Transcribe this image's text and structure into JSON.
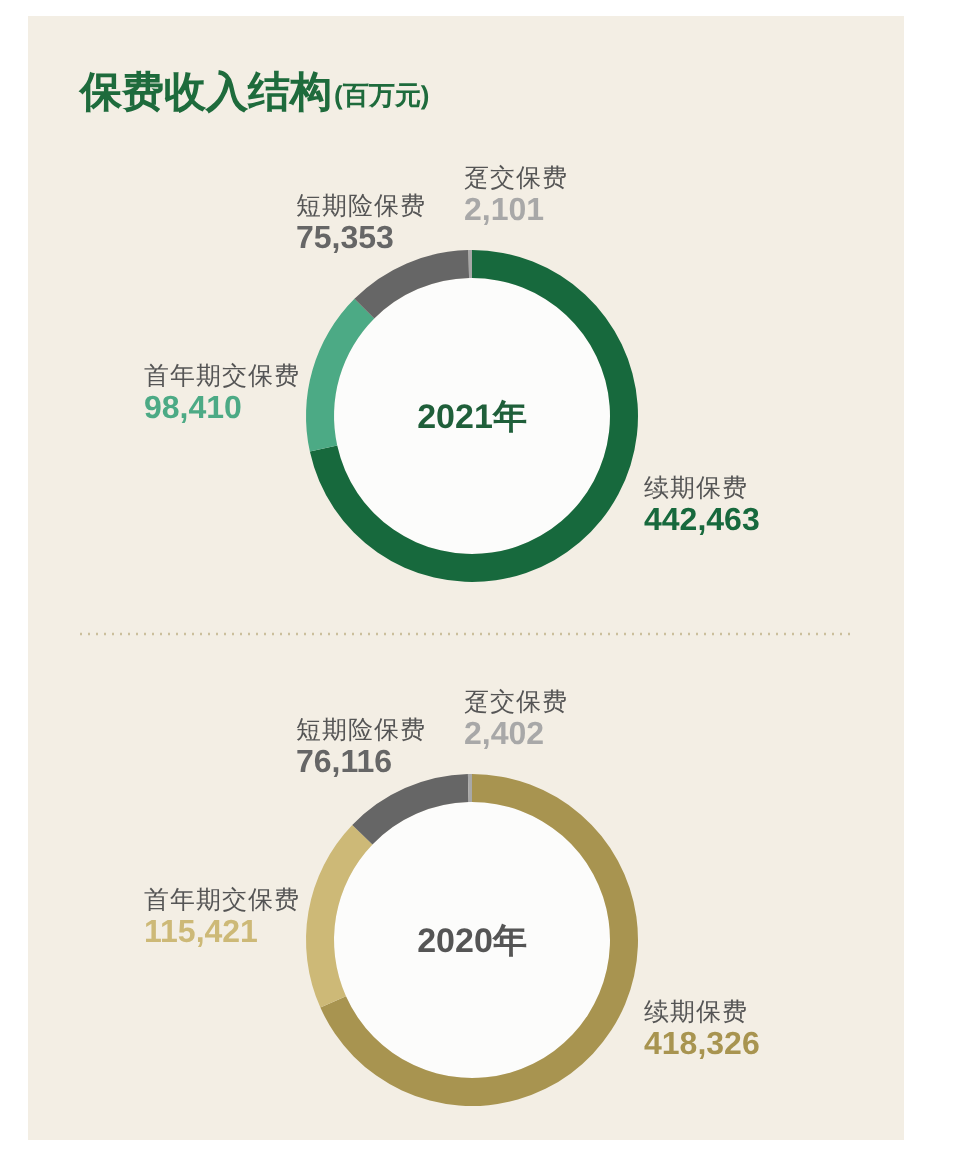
{
  "chart_data": [
    {
      "type": "donut",
      "title": "保费收入结构",
      "subtitle": "(百万元)",
      "annotations": [
        "2021年"
      ],
      "categories": [
        "续期保费",
        "首年期交保费",
        "短期险保费",
        "趸交保费"
      ],
      "values": [
        442463,
        98410,
        75353,
        2101
      ],
      "value_labels": [
        "442,463",
        "98,410",
        "75,353",
        "2,101"
      ],
      "colors": [
        "#17693d",
        "#4caa85",
        "#666666",
        "#a8a8a8"
      ]
    },
    {
      "type": "donut",
      "annotations": [
        "2020年"
      ],
      "categories": [
        "续期保费",
        "首年期交保费",
        "短期险保费",
        "趸交保费"
      ],
      "values": [
        418326,
        115421,
        76116,
        2402
      ],
      "value_labels": [
        "418,326",
        "115,421",
        "76,116",
        "2,402"
      ],
      "colors": [
        "#a89450",
        "#cdb977",
        "#666666",
        "#a8a8a8"
      ]
    }
  ]
}
